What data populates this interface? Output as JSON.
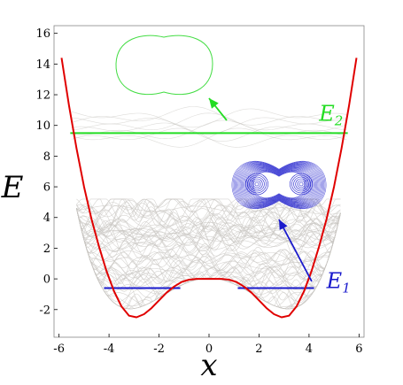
{
  "chart_data": {
    "type": "line",
    "xlabel": "x",
    "ylabel": "E",
    "xlim": [
      -6.2,
      6.2
    ],
    "ylim": [
      -3.8,
      16.5
    ],
    "xticks": [
      -6,
      -4,
      -2,
      0,
      2,
      4,
      6
    ],
    "yticks": [
      -2,
      0,
      2,
      4,
      6,
      8,
      10,
      12,
      14,
      16
    ],
    "xtick_labels": [
      "-6",
      "-4",
      "-2",
      "0",
      "2",
      "4",
      "6"
    ],
    "ytick_labels": [
      "-2",
      "0",
      "2",
      "4",
      "6",
      "8",
      "10",
      "12",
      "14",
      "16"
    ],
    "grid": false,
    "potential_color": "#e00000",
    "trajectory_color": "#c8c6c2",
    "potential": {
      "x": [
        -5.9,
        -5.6,
        -5.3,
        -5.0,
        -4.7,
        -4.4,
        -4.1,
        -3.8,
        -3.5,
        -3.2,
        -2.9,
        -2.6,
        -2.3,
        -2.0,
        -1.7,
        -1.4,
        -1.1,
        -0.8,
        -0.5,
        -0.2,
        0.0,
        0.2,
        0.5,
        0.8,
        1.1,
        1.4,
        1.7,
        2.0,
        2.3,
        2.6,
        2.9,
        3.2,
        3.5,
        3.8,
        4.1,
        4.4,
        4.7,
        5.0,
        5.3,
        5.6,
        5.9
      ],
      "y": [
        14.4,
        11.3,
        8.5,
        6.0,
        3.9,
        2.1,
        0.5,
        -0.8,
        -1.8,
        -2.4,
        -2.5,
        -2.3,
        -1.9,
        -1.4,
        -0.9,
        -0.5,
        -0.2,
        -0.05,
        0.0,
        0.0,
        0.0,
        0.0,
        0.0,
        -0.05,
        -0.2,
        -0.5,
        -0.9,
        -1.4,
        -1.9,
        -2.3,
        -2.5,
        -2.4,
        -1.8,
        -0.8,
        0.5,
        2.1,
        3.9,
        6.0,
        8.5,
        11.3,
        14.4
      ]
    },
    "energy_levels": [
      {
        "label": "E2",
        "value": 9.5,
        "color": "#22dd22",
        "segments": [
          [
            -5.55,
            5.55
          ]
        ],
        "annotation": {
          "x": 4.4,
          "y": 10.3
        }
      },
      {
        "label": "E1",
        "value": -0.6,
        "color": "#1a1acc",
        "segments": [
          [
            -4.2,
            -1.15
          ],
          [
            1.15,
            4.2
          ]
        ],
        "annotation": {
          "x": 4.7,
          "y": -0.6
        }
      }
    ],
    "insets": [
      {
        "name": "E2 phase-space orbit",
        "color": "#44dd44"
      },
      {
        "name": "E1 phase-space orbits",
        "color": "#1a1acc"
      }
    ]
  }
}
